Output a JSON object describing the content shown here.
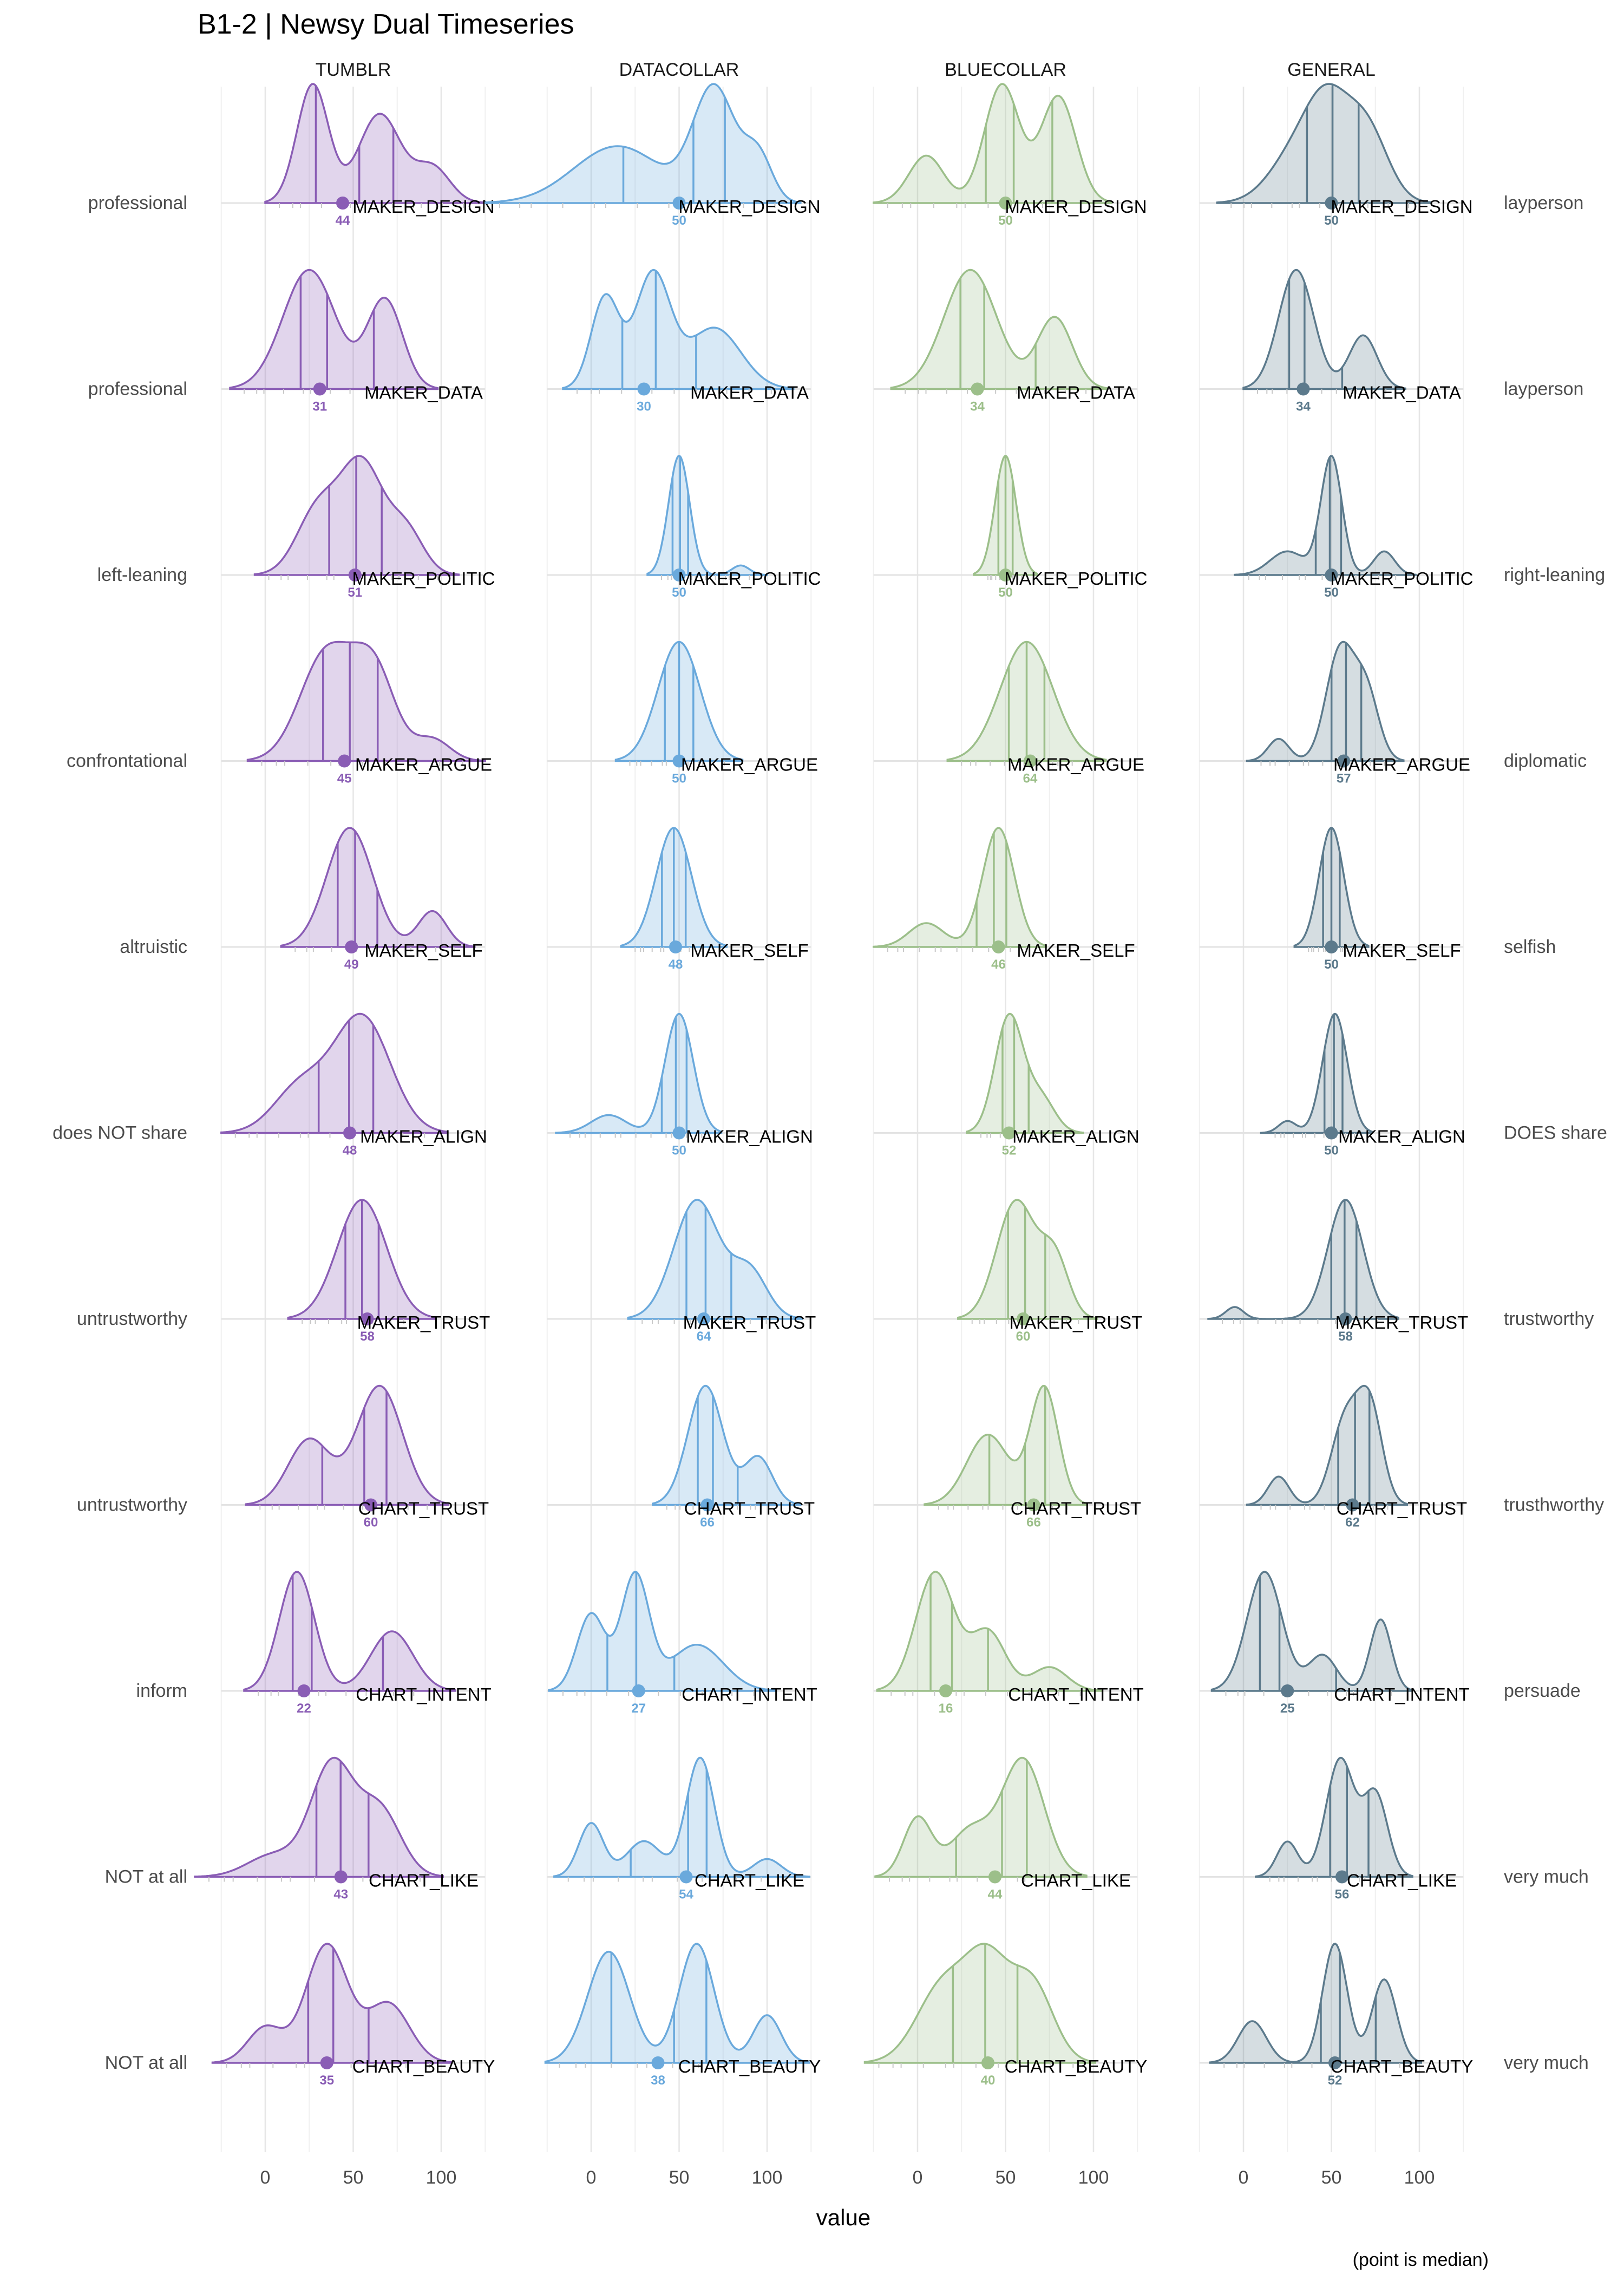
{
  "chart_data": {
    "type": "area",
    "title": "B1-2 | Newsy Dual Timeseries",
    "xlabel": "value",
    "ylabel": "",
    "note": "(point is median)",
    "xlim": [
      -25,
      125
    ],
    "x_ticks": [
      0,
      50,
      100
    ],
    "x_tick_labels": [
      "0",
      "50",
      "100"
    ],
    "grid": true,
    "facets": [
      {
        "name": "TUMBLR",
        "color": "#8a5db5"
      },
      {
        "name": "DATACOLLAR",
        "color": "#6aa9dc"
      },
      {
        "name": "BLUECOLLAR",
        "color": "#9cbf8a"
      },
      {
        "name": "GENERAL",
        "color": "#5c7a8c"
      }
    ],
    "rows": [
      {
        "variable": "MAKER_DESIGN",
        "left": "professional",
        "right": "layperson",
        "medians": [
          44,
          50,
          50,
          50
        ]
      },
      {
        "variable": "MAKER_DATA",
        "left": "professional",
        "right": "layperson",
        "medians": [
          31,
          30,
          34,
          34
        ]
      },
      {
        "variable": "MAKER_POLITIC",
        "left": "left-leaning",
        "right": "right-leaning",
        "medians": [
          51,
          50,
          50,
          50
        ]
      },
      {
        "variable": "MAKER_ARGUE",
        "left": "confrontational",
        "right": "diplomatic",
        "medians": [
          45,
          50,
          64,
          57
        ]
      },
      {
        "variable": "MAKER_SELF",
        "left": "altruistic",
        "right": "selfish",
        "medians": [
          49,
          48,
          46,
          50
        ]
      },
      {
        "variable": "MAKER_ALIGN",
        "left": "does NOT share",
        "right": "DOES share",
        "medians": [
          48,
          50,
          52,
          50
        ]
      },
      {
        "variable": "MAKER_TRUST",
        "left": "untrustworthy",
        "right": "trustworthy",
        "medians": [
          58,
          64,
          60,
          58
        ]
      },
      {
        "variable": "CHART_TRUST",
        "left": "untrustworthy",
        "right": "trusthworthy",
        "medians": [
          60,
          66,
          66,
          62
        ]
      },
      {
        "variable": "CHART_INTENT",
        "left": "inform",
        "right": "persuade",
        "medians": [
          22,
          27,
          16,
          25
        ]
      },
      {
        "variable": "CHART_LIKE",
        "left": "NOT at all",
        "right": "very much",
        "medians": [
          43,
          54,
          44,
          56
        ]
      },
      {
        "variable": "CHART_BEAUTY",
        "left": "NOT at all",
        "right": "very much",
        "medians": [
          35,
          38,
          40,
          52
        ]
      }
    ]
  }
}
